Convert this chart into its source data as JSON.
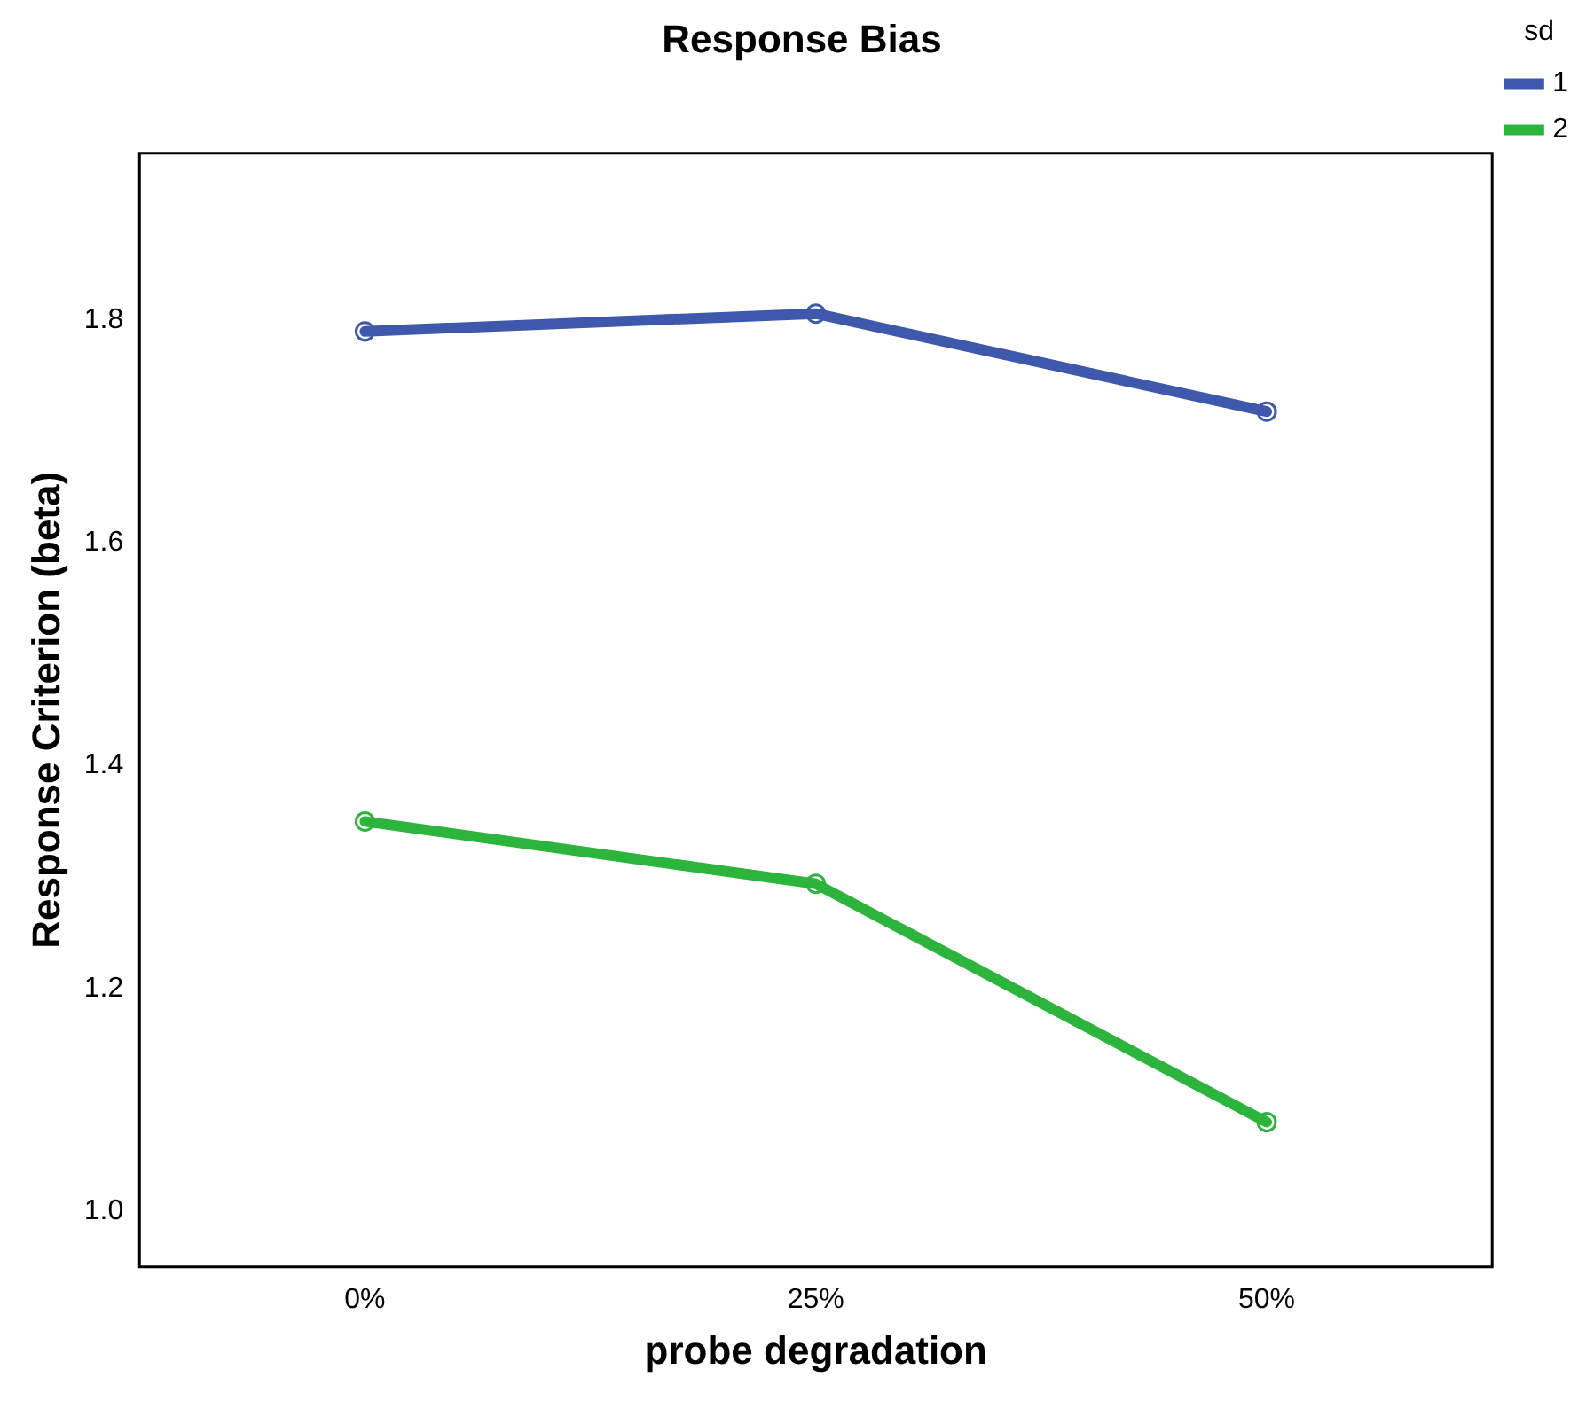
{
  "chart_data": {
    "type": "line",
    "title": "Response Bias",
    "xlabel": "probe degradation",
    "ylabel": "Response Criterion (beta)",
    "legend_title": "sd",
    "categories": [
      "0%",
      "25%",
      "50%"
    ],
    "series": [
      {
        "name": "1",
        "color": "#3e58ac",
        "values": [
          1.79,
          1.806,
          1.718
        ]
      },
      {
        "name": "2",
        "color": "#2db43c",
        "values": [
          1.35,
          1.294,
          1.08
        ]
      }
    ],
    "ylim": [
      0.95,
      1.95
    ],
    "yticks": [
      {
        "value": 1,
        "label": "1.0"
      },
      1.2,
      1.4,
      1.6,
      1.8
    ],
    "grid": false,
    "legend": "right",
    "marker": "circle",
    "line_style": "solid"
  }
}
